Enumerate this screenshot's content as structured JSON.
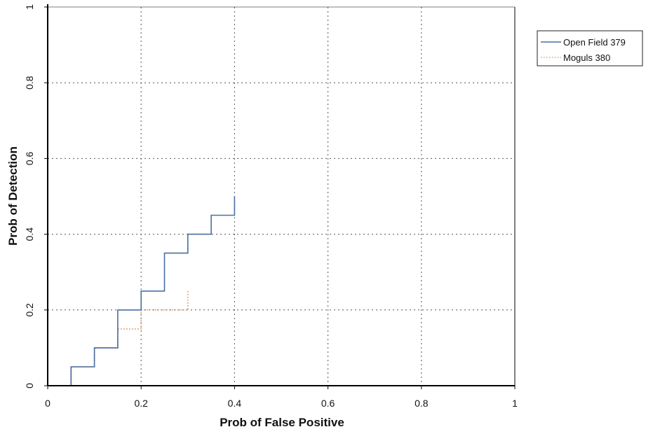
{
  "chart_data": {
    "type": "line",
    "title": "",
    "xlabel": "Prob of False Positive",
    "ylabel": "Prob of Detection",
    "xlim": [
      0,
      1
    ],
    "ylim": [
      0,
      1
    ],
    "xticks": [
      0,
      0.2,
      0.4,
      0.6,
      0.8,
      1
    ],
    "yticks": [
      0,
      0.2,
      0.4,
      0.6,
      0.8,
      1
    ],
    "xtick_labels": [
      "0",
      "0.2",
      "0.4",
      "0.6",
      "0.8",
      "1"
    ],
    "ytick_labels": [
      "0",
      "0.2",
      "0.4",
      "0.6",
      "0.8",
      "1"
    ],
    "grid": true,
    "grid_style": "dotted",
    "legend_position": "top-right, outside plot",
    "series": [
      {
        "name": "Open Field 379",
        "color": "#4a6fa5",
        "line_style": "solid",
        "step": true,
        "x": [
          0.05,
          0.05,
          0.1,
          0.1,
          0.15,
          0.15,
          0.2,
          0.2,
          0.25,
          0.25,
          0.3,
          0.3,
          0.35,
          0.35,
          0.4,
          0.4
        ],
        "y": [
          0.0,
          0.05,
          0.05,
          0.1,
          0.1,
          0.2,
          0.2,
          0.25,
          0.25,
          0.35,
          0.35,
          0.4,
          0.4,
          0.45,
          0.45,
          0.5
        ]
      },
      {
        "name": "Moguls 380",
        "color": "#d9a07a",
        "line_style": "dotted",
        "step": true,
        "x": [
          0.05,
          0.05,
          0.1,
          0.1,
          0.15,
          0.15,
          0.2,
          0.2,
          0.3,
          0.3
        ],
        "y": [
          0.0,
          0.05,
          0.05,
          0.1,
          0.1,
          0.15,
          0.15,
          0.2,
          0.2,
          0.25
        ]
      }
    ]
  }
}
